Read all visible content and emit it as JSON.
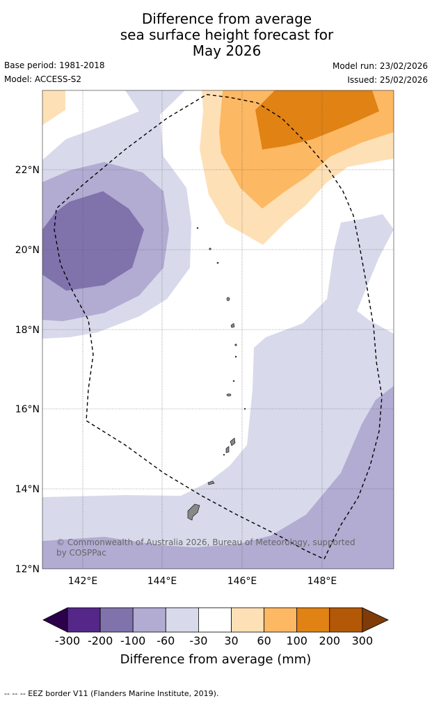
{
  "title": {
    "line1": "Difference from average",
    "line2": "sea surface height forecast for",
    "line3": "May 2026"
  },
  "meta": {
    "base_period": "Base period: 1981-2018",
    "model": "Model: ACCESS-S2",
    "model_run": "Model run: 23/02/2026",
    "issued": "Issued: 25/02/2026"
  },
  "map": {
    "lat_ticks": [
      "22°N",
      "20°N",
      "18°N",
      "16°N",
      "14°N",
      "12°N"
    ],
    "lon_ticks": [
      "142°E",
      "144°E",
      "146°E",
      "148°E"
    ],
    "copyright_line1": "© Commonwealth of Australia 2026, Bureau of Meteorology, supported",
    "copyright_line2": "by COSPPac"
  },
  "colorbar": {
    "labels": [
      "-300",
      "-200",
      "-100",
      "-60",
      "-30",
      "30",
      "60",
      "100",
      "200",
      "300"
    ],
    "colors": [
      "#2d004b",
      "#542788",
      "#8073ac",
      "#b2abd2",
      "#d8daeb",
      "#ffffff",
      "#fee0b6",
      "#fdb863",
      "#e08214",
      "#b35806",
      "#7f3b08"
    ],
    "title": "Difference from average (mm)"
  },
  "footer": "--  --  -- EEZ border V11 (Flanders Marine Institute, 2019)."
}
